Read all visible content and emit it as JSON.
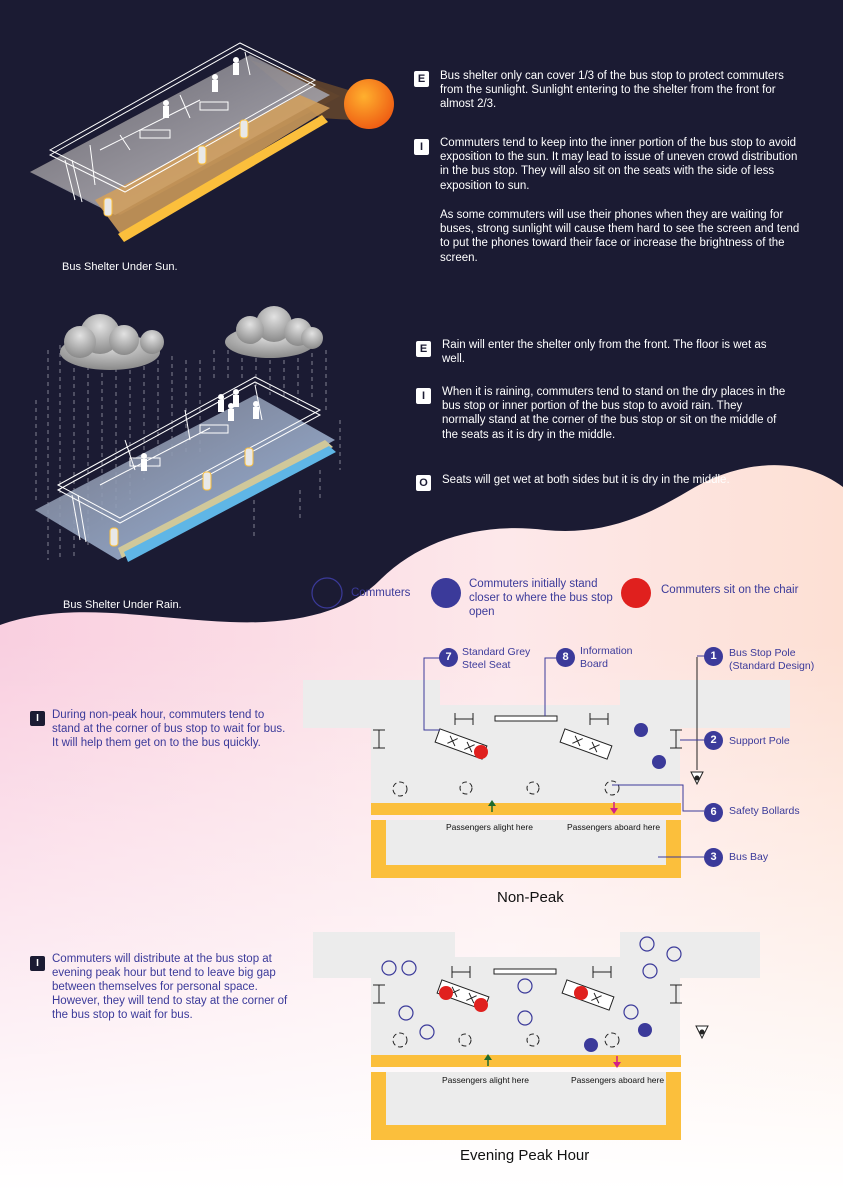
{
  "sun_section": {
    "caption": "Bus Shelter Under Sun.",
    "E_text": "Bus shelter only can cover 1/3 of the bus stop to protect commuters from the sunlight. Sunlight entering to the shelter from the front for almost 2/3.",
    "I_text_1": "Commuters tend to keep into the inner portion of the bus stop to avoid exposition to the sun. It may lead to issue of uneven crowd distribution in the bus stop. They will also sit on the seats with the side of less exposition to sun.",
    "I_text_2": "As some commuters will use their phones when they are waiting for buses, strong sunlight will cause them hard to see the screen and tend to put the phones toward their face or increase the brightness of the screen."
  },
  "rain_section": {
    "caption": "Bus Shelter Under Rain.",
    "E_text": "Rain will enter the shelter only from the front. The floor is wet as well.",
    "I_text": "When it is raining, commuters tend to stand on the dry places in the bus stop or inner portion of the bus stop to avoid rain. They normally stand at the corner of the bus stop or sit on the middle of the seats as it is dry in the middle.",
    "O_text": "Seats will get wet at both sides but it is dry in the middle."
  },
  "badges": {
    "E": "E",
    "I": "I",
    "O": "O"
  },
  "legend": {
    "commuters": "Commuters",
    "initial": "Commuters initially stand closer to where the bus stop open",
    "seated": "Commuters sit on the chair"
  },
  "labels": {
    "seat_num": "7",
    "seat": "Standard Grey Steel Seat",
    "board_num": "8",
    "board": "Information Board",
    "pole_num": "1",
    "pole": "Bus Stop Pole (Standard Design)",
    "support_num": "2",
    "support": "Support Pole",
    "bollard_num": "6",
    "bollard": "Safety Bollards",
    "bay_num": "3",
    "bay": "Bus Bay"
  },
  "non_peak": {
    "title": "Non-Peak",
    "note": "During non-peak hour, commuters tend to stand at the corner of bus stop to wait for bus. It will help them get on to the bus quickly.",
    "alight": "Passengers alight here",
    "aboard": "Passengers aboard here"
  },
  "peak": {
    "title": "Evening Peak Hour",
    "note": "Commuters will distribute at the bus stop at evening peak hour but tend to leave big gap between themselves for personal space. However, they will tend to stay at the corner of the bus stop to wait for bus.",
    "alight": "Passengers alight here",
    "aboard": "Passengers aboard here"
  },
  "colors": {
    "dark_bg": "#1b1b33",
    "commuter": "#3b3a9a",
    "seated": "#e0201e",
    "bay_yellow": "#fbbf3c",
    "sun": "#f59420"
  }
}
